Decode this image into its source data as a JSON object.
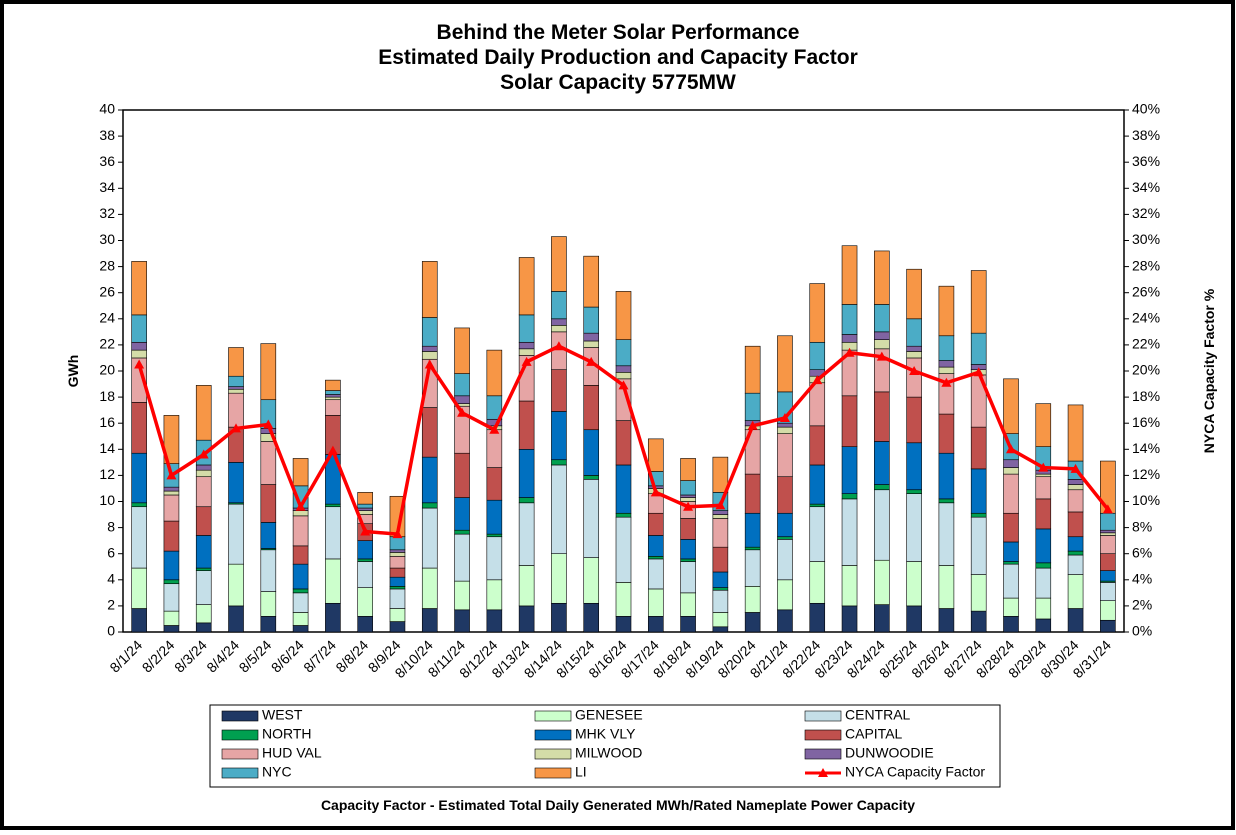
{
  "chart_data": {
    "type": "bar",
    "stacked": true,
    "title": [
      "Behind the Meter Solar Performance",
      "Estimated Daily Production and Capacity Factor",
      "Solar Capacity 5775MW"
    ],
    "ylabel": "GWh",
    "y2label": "NYCA Capacity Factor %",
    "note": "Capacity Factor  - Estimated Total Daily Generated MWh/Rated Nameplate Power Capacity",
    "categories": [
      "8/1/24",
      "8/2/24",
      "8/3/24",
      "8/4/24",
      "8/5/24",
      "8/6/24",
      "8/7/24",
      "8/8/24",
      "8/9/24",
      "8/10/24",
      "8/11/24",
      "8/12/24",
      "8/13/24",
      "8/14/24",
      "8/15/24",
      "8/16/24",
      "8/17/24",
      "8/18/24",
      "8/19/24",
      "8/20/24",
      "8/21/24",
      "8/22/24",
      "8/23/24",
      "8/24/24",
      "8/25/24",
      "8/26/24",
      "8/27/24",
      "8/28/24",
      "8/29/24",
      "8/30/24",
      "8/31/24"
    ],
    "ylim": [
      0,
      40
    ],
    "yticks": [
      0,
      2,
      4,
      6,
      8,
      10,
      12,
      14,
      16,
      18,
      20,
      22,
      24,
      26,
      28,
      30,
      32,
      34,
      36,
      38,
      40
    ],
    "y2lim": [
      0,
      40
    ],
    "y2ticks": [
      {
        "value": 0,
        "label": "0%"
      },
      {
        "value": 2,
        "label": "2%"
      },
      {
        "value": 4,
        "label": "4%"
      },
      {
        "value": 6,
        "label": "6%"
      },
      {
        "value": 8,
        "label": "8%"
      },
      {
        "value": 10,
        "label": "10%"
      },
      {
        "value": 12,
        "label": "12%"
      },
      {
        "value": 14,
        "label": "14%"
      },
      {
        "value": 16,
        "label": "16%"
      },
      {
        "value": 18,
        "label": "18%"
      },
      {
        "value": 20,
        "label": "20%"
      },
      {
        "value": 22,
        "label": "22%"
      },
      {
        "value": 24,
        "label": "24%"
      },
      {
        "value": 26,
        "label": "26%"
      },
      {
        "value": 28,
        "label": "28%"
      },
      {
        "value": 30,
        "label": "30%"
      },
      {
        "value": 32,
        "label": "32%"
      },
      {
        "value": 34,
        "label": "34%"
      },
      {
        "value": 36,
        "label": "36%"
      },
      {
        "value": 38,
        "label": "38%"
      },
      {
        "value": 40,
        "label": "40%"
      }
    ],
    "grid": false,
    "series": [
      {
        "name": "WEST",
        "color": "#1f3864",
        "values": [
          1.8,
          0.5,
          0.7,
          2.0,
          1.2,
          0.5,
          2.2,
          1.2,
          0.8,
          1.8,
          1.7,
          1.7,
          2.0,
          2.2,
          2.2,
          1.2,
          1.2,
          1.2,
          0.4,
          1.5,
          1.7,
          2.2,
          2.0,
          2.1,
          2.0,
          1.8,
          1.6,
          1.2,
          1.0,
          1.8,
          0.9
        ]
      },
      {
        "name": "GENESEE",
        "color": "#ccffcc",
        "values": [
          3.1,
          1.1,
          1.4,
          3.2,
          1.9,
          1.0,
          3.4,
          2.2,
          1.0,
          3.1,
          2.2,
          2.3,
          3.1,
          3.8,
          3.5,
          2.6,
          2.1,
          1.8,
          1.1,
          2.0,
          2.3,
          3.2,
          3.1,
          3.4,
          3.4,
          3.3,
          2.8,
          1.4,
          1.6,
          2.6,
          1.5
        ]
      },
      {
        "name": "CENTRAL",
        "color": "#c5dfe8",
        "values": [
          4.7,
          2.1,
          2.6,
          4.6,
          3.2,
          1.5,
          4.0,
          2.0,
          1.5,
          4.6,
          3.6,
          3.3,
          4.8,
          6.8,
          6.0,
          5.0,
          2.3,
          2.4,
          1.7,
          2.8,
          3.1,
          4.2,
          5.1,
          5.4,
          5.2,
          4.8,
          4.4,
          2.6,
          2.3,
          1.5,
          1.4
        ]
      },
      {
        "name": "NORTH",
        "color": "#00a050",
        "values": [
          0.3,
          0.3,
          0.2,
          0.1,
          0.1,
          0.3,
          0.2,
          0.2,
          0.2,
          0.4,
          0.3,
          0.2,
          0.4,
          0.4,
          0.3,
          0.3,
          0.2,
          0.2,
          0.2,
          0.2,
          0.2,
          0.2,
          0.4,
          0.4,
          0.3,
          0.3,
          0.3,
          0.2,
          0.4,
          0.3,
          0.1
        ]
      },
      {
        "name": "MHK VLY",
        "color": "#0070c0",
        "values": [
          3.8,
          2.2,
          2.5,
          3.1,
          2.0,
          1.9,
          3.8,
          1.4,
          0.7,
          3.5,
          2.5,
          2.6,
          3.7,
          3.7,
          3.5,
          3.7,
          1.6,
          1.5,
          1.2,
          2.6,
          1.8,
          3.0,
          3.6,
          3.3,
          3.6,
          3.5,
          3.4,
          1.5,
          2.6,
          1.1,
          0.8
        ]
      },
      {
        "name": "CAPITAL",
        "color": "#c0504d",
        "values": [
          3.9,
          2.3,
          2.2,
          2.7,
          2.9,
          1.4,
          3.0,
          1.3,
          0.7,
          3.8,
          3.4,
          2.5,
          3.7,
          3.2,
          3.4,
          3.4,
          1.7,
          1.6,
          1.9,
          3.0,
          2.8,
          3.0,
          3.9,
          3.8,
          3.5,
          3.0,
          3.2,
          2.2,
          2.3,
          1.9,
          1.3
        ]
      },
      {
        "name": "HUD VAL",
        "color": "#e6a5a5",
        "values": [
          3.4,
          2.0,
          2.3,
          2.6,
          3.3,
          2.3,
          1.2,
          0.7,
          0.9,
          3.7,
          3.6,
          2.9,
          3.5,
          2.9,
          2.9,
          3.2,
          1.5,
          1.3,
          2.2,
          3.4,
          3.3,
          3.3,
          3.5,
          3.3,
          3.0,
          3.1,
          4.0,
          3.0,
          1.7,
          1.7,
          1.4
        ]
      },
      {
        "name": "MILWOOD",
        "color": "#d4dca8",
        "values": [
          0.6,
          0.3,
          0.5,
          0.3,
          0.6,
          0.4,
          0.2,
          0.3,
          0.3,
          0.6,
          0.2,
          0.3,
          0.5,
          0.5,
          0.5,
          0.5,
          0.4,
          0.3,
          0.3,
          0.3,
          0.5,
          0.5,
          0.6,
          0.7,
          0.5,
          0.5,
          0.4,
          0.5,
          0.2,
          0.4,
          0.2
        ]
      },
      {
        "name": "DUNWOODIE",
        "color": "#8064a2",
        "values": [
          0.6,
          0.3,
          0.4,
          0.2,
          0.4,
          0.2,
          0.2,
          0.2,
          0.2,
          0.4,
          0.6,
          0.5,
          0.5,
          0.5,
          0.6,
          0.5,
          0.2,
          0.2,
          0.3,
          0.4,
          0.3,
          0.5,
          0.6,
          0.6,
          0.4,
          0.5,
          0.4,
          0.6,
          0.3,
          0.4,
          0.2
        ]
      },
      {
        "name": "NYC",
        "color": "#4bacc6",
        "values": [
          2.1,
          1.8,
          1.9,
          0.8,
          2.2,
          1.7,
          0.3,
          0.3,
          1.0,
          2.2,
          1.7,
          1.8,
          2.1,
          2.1,
          2.0,
          2.0,
          1.1,
          1.1,
          1.4,
          2.1,
          2.4,
          2.1,
          2.3,
          2.1,
          2.1,
          1.9,
          2.4,
          2.0,
          1.8,
          1.4,
          1.3
        ]
      },
      {
        "name": "LI",
        "color": "#f79646",
        "values": [
          4.1,
          3.7,
          4.2,
          2.2,
          4.3,
          2.1,
          0.8,
          0.9,
          3.1,
          4.3,
          3.5,
          3.5,
          4.4,
          4.2,
          3.9,
          3.7,
          2.5,
          1.7,
          2.7,
          3.6,
          4.3,
          4.5,
          4.5,
          4.1,
          3.8,
          3.8,
          4.8,
          4.2,
          3.3,
          4.3,
          4.0
        ]
      },
      {
        "name": "NYCA Capacity Factor",
        "color": "#ff0000",
        "type": "line",
        "axis": "y2",
        "values": [
          20.5,
          12.0,
          13.6,
          15.6,
          15.9,
          9.6,
          13.9,
          7.7,
          7.5,
          20.5,
          16.8,
          15.5,
          20.7,
          21.9,
          20.7,
          18.9,
          10.7,
          9.6,
          9.7,
          15.8,
          16.4,
          19.3,
          21.4,
          21.1,
          20.0,
          19.1,
          19.9,
          14.0,
          12.6,
          12.5,
          9.4
        ]
      }
    ]
  }
}
